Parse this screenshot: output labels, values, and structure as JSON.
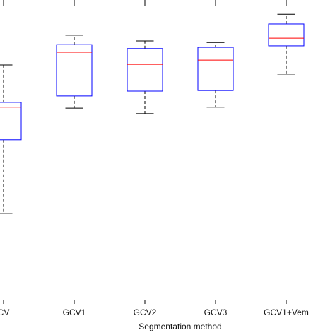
{
  "chart_data": {
    "type": "box",
    "x_label": "Segmentation method",
    "categories": [
      "CV",
      "GCV1",
      "GCV2",
      "GCV3",
      "GCV1+Vem"
    ],
    "min": [
      29.8,
      64.4,
      62.6,
      64.7,
      75.6
    ],
    "q1": [
      54.0,
      68.4,
      70.0,
      70.2,
      84.9
    ],
    "median": [
      64.7,
      82.8,
      78.8,
      80.2,
      87.4
    ],
    "q3": [
      66.3,
      85.3,
      84.0,
      84.4,
      92.1
    ],
    "max": [
      78.6,
      88.4,
      86.5,
      86.0,
      95.3
    ],
    "ylim": [
      0,
      100
    ],
    "box_color": "#0000ff",
    "median_color": "#ff0000",
    "whisker_color": "#000000"
  }
}
